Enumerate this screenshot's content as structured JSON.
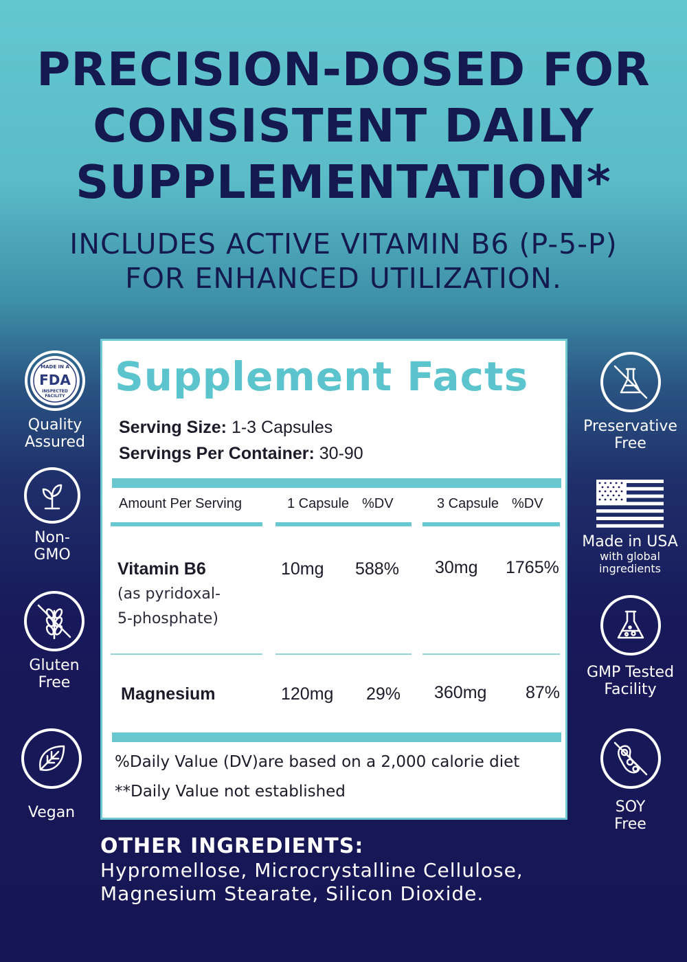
{
  "headline": {
    "line1": "PRECISION-DOSED FOR",
    "line2": "CONSISTENT DAILY",
    "line3": "SUPPLEMENTATION*"
  },
  "subhead": {
    "line1": "INCLUDES ACTIVE VITAMIN B6 (P-5-P)",
    "line2": "FOR ENHANCED UTILIZATION."
  },
  "facts": {
    "title": "Supplement Facts",
    "serving_size_label": "Serving Size:",
    "serving_size_value": " 1-3 Capsules",
    "servings_label": "Servings Per Container:",
    "servings_value": " 30-90",
    "columns": {
      "amount": "Amount Per Serving",
      "cap1": "1 Capsule",
      "dv1": "%DV",
      "cap3": "3 Capsule",
      "dv3": "%DV"
    },
    "rows": [
      {
        "name": "Vitamin B6",
        "sub1": "(as pyridoxal-",
        "sub2": "5-phosphate)",
        "amount1": "10mg",
        "dv1": "588%",
        "amount3": "30mg",
        "dv3": "1765%"
      },
      {
        "name": "Magnesium",
        "amount1": "120mg",
        "dv1": "29%",
        "amount3": "360mg",
        "dv3": "87%"
      }
    ],
    "footnote1": "%Daily Value (DV)are based on a 2,000 calorie diet",
    "footnote2": "**Daily Value not established"
  },
  "badges_left": [
    {
      "icon": "fda-seal-icon",
      "seal_top": "MADE IN A",
      "seal_main": "FDA",
      "seal_bottom1": "INSPECTED",
      "seal_bottom2": "FACILITY",
      "line1": "Quality",
      "line2": "Assured"
    },
    {
      "icon": "sprout-icon",
      "line1": "Non-",
      "line2": "GMO"
    },
    {
      "icon": "no-wheat-icon",
      "line1": "Gluten",
      "line2": "Free"
    },
    {
      "icon": "leaf-icon",
      "line1": "Vegan"
    }
  ],
  "badges_right": [
    {
      "icon": "no-flask-icon",
      "line1": "Preservative",
      "line2": "Free"
    },
    {
      "icon": "us-flag-icon",
      "line1": "Made in USA",
      "line2": "with global",
      "line3": "ingredients"
    },
    {
      "icon": "lab-flask-icon",
      "line1": "GMP Tested",
      "line2": "Facility"
    },
    {
      "icon": "no-soy-icon",
      "line1": "SOY",
      "line2": "Free"
    }
  ],
  "other_ingredients": {
    "title": "OTHER INGREDIENTS:",
    "line1": "Hypromellose, Microcrystalline Cellulose,",
    "line2": "Magnesium Stearate, Silicon Dioxide."
  },
  "colors": {
    "navy": "#141a4f",
    "teal": "#5cc4cd",
    "background_top": "#64c6cf",
    "background_bottom": "#161654"
  }
}
